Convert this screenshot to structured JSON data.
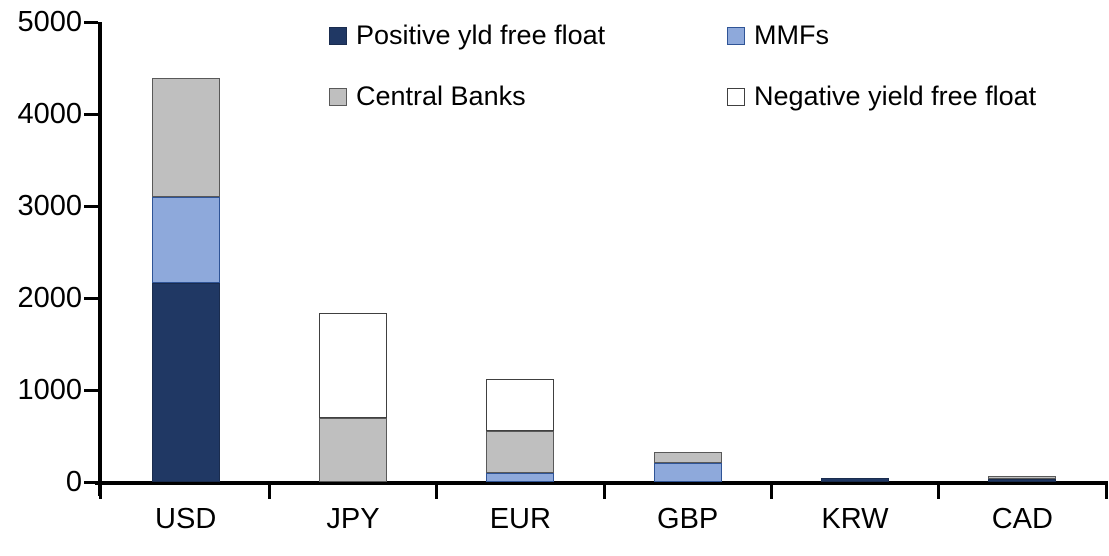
{
  "chart_data": {
    "type": "bar",
    "stacked": true,
    "title": "",
    "xlabel": "",
    "ylabel": "",
    "categories": [
      "USD",
      "JPY",
      "EUR",
      "GBP",
      "KRW",
      "CAD"
    ],
    "series": [
      {
        "name": "Positive yld free float",
        "color": "#203864",
        "border": "#1a2c4e",
        "values": [
          2160,
          0,
          0,
          0,
          45,
          35
        ]
      },
      {
        "name": "MMFs",
        "color": "#8EA9DB",
        "border": "#2f5496",
        "values": [
          940,
          0,
          100,
          210,
          0,
          0
        ]
      },
      {
        "name": "Central Banks",
        "color": "#BFBFBF",
        "border": "#595959",
        "values": [
          1290,
          700,
          450,
          120,
          0,
          30
        ]
      },
      {
        "name": "Negative yield free float",
        "color": "#FFFFFF",
        "border": "#404040",
        "values": [
          0,
          1140,
          570,
          0,
          0,
          0
        ]
      }
    ],
    "ylim": [
      0,
      5000
    ],
    "ytick_interval": 1000,
    "yticks": [
      "0",
      "1000",
      "2000",
      "3000",
      "4000",
      "5000"
    ],
    "grid": false,
    "legend_position": "top",
    "legend_rows": [
      [
        "Positive yld free float",
        "MMFs"
      ],
      [
        "Central Banks",
        "Negative yield free float"
      ]
    ]
  },
  "axis_color": "#000000",
  "text_color": "#000000"
}
